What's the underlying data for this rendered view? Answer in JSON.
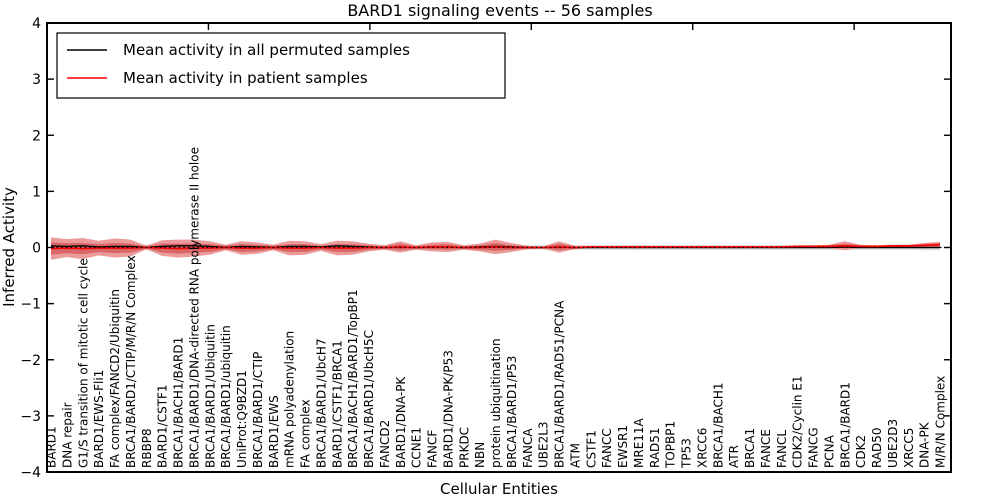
{
  "legend": {
    "items": [
      {
        "label": "Mean activity in all permuted samples",
        "color": "#000000"
      },
      {
        "label": "Mean activity in patient samples",
        "color": "#ff0000"
      }
    ]
  },
  "chart_data": {
    "type": "line",
    "title": "BARD1 signaling events -- 56 samples",
    "xlabel": "Cellular Entities",
    "ylabel": "Inferred Activity",
    "ylim": [
      -4,
      4
    ],
    "ytick_labels": [
      "4",
      "3",
      "2",
      "1",
      "0",
      "−1",
      "−2",
      "−3",
      "−4"
    ],
    "ytick_values": [
      4,
      3,
      2,
      1,
      0,
      -1,
      -2,
      -3,
      -4
    ],
    "grid": false,
    "legend_position": "upper-left",
    "zero_line": {
      "style": "dotted",
      "color": "#000000",
      "value": 0
    },
    "categories": [
      "BARD1",
      "DNA repair",
      "G1/S transition of mitotic cell cycle",
      "BARD1/EWS-Fli1",
      "FA complex/FANCD2/Ubiquitin",
      "BRCA1/BARD1/CTIP/M/R/N Complex",
      "RBBP8",
      "BARD1/CSTF1",
      "BRCA1/BACH1/BARD1",
      "BRCA1/BARD1/DNA-directed RNA polymerase II holoe",
      "BRCA1/BARD1/Ubiquitin",
      "BRCA1/BARD1/ubiquitin",
      "UniProt:Q9BZD1",
      "BRCA1/BARD1/CTIP",
      "BARD1/EWS",
      "mRNA polyadenylation",
      "FA complex",
      "BRCA1/BARD1/UbcH7",
      "BARD1/CSTF1/BRCA1",
      "BRCA1/BACH1/BARD1/TopBP1",
      "BRCA1/BARD1/UbcH5C",
      "FANCD2",
      "BARD1/DNA-PK",
      "CCNE1",
      "FANCF",
      "BARD1/DNA-PK/P53",
      "PRKDC",
      "NBN",
      "protein ubiquitination",
      "BRCA1/BARD1/P53",
      "FANCA",
      "UBE2L3",
      "BRCA1/BARD1/RAD51/PCNA",
      "ATM",
      "CSTF1",
      "FANCC",
      "EWSR1",
      "MRE11A",
      "RAD51",
      "TOPBP1",
      "TP53",
      "XRCC6",
      "BRCA1/BACH1",
      "ATR",
      "BRCA1",
      "FANCE",
      "FANCL",
      "CDK2/Cyclin E1",
      "FANCG",
      "PCNA",
      "BRCA1/BARD1",
      "CDK2",
      "RAD50",
      "UBE2D3",
      "XRCC5",
      "DNA-PK",
      "M/R/N Complex"
    ],
    "series": [
      {
        "name": "Mean activity in all permuted samples",
        "color": "#000000",
        "values": [
          0.03,
          0.02,
          0.03,
          0.01,
          0.02,
          0.02,
          0.0,
          0.02,
          0.03,
          0.03,
          0.02,
          0.0,
          0.02,
          0.01,
          0.0,
          0.02,
          0.02,
          0.01,
          0.03,
          0.02,
          0.01,
          0.0,
          0.01,
          0.0,
          0.01,
          0.01,
          0.0,
          0.01,
          0.02,
          0.01,
          0.0,
          0.0,
          0.01,
          0.0,
          0.0,
          0.0,
          0.0,
          0.0,
          0.0,
          0.0,
          0.0,
          0.0,
          0.0,
          0.0,
          0.0,
          0.0,
          0.0,
          0.0,
          0.0,
          0.0,
          0.01,
          0.0,
          0.0,
          0.0,
          0.0,
          0.0,
          0.0
        ]
      },
      {
        "name": "Mean activity in patient samples",
        "color": "#ff0000",
        "values": [
          -0.02,
          -0.01,
          -0.02,
          -0.01,
          -0.01,
          -0.01,
          0.0,
          -0.01,
          -0.02,
          -0.01,
          -0.01,
          0.0,
          -0.01,
          -0.01,
          0.0,
          -0.01,
          -0.01,
          0.0,
          -0.01,
          -0.01,
          0.0,
          0.0,
          0.01,
          0.0,
          0.01,
          0.01,
          0.0,
          0.0,
          0.01,
          0.0,
          0.0,
          0.0,
          0.01,
          0.0,
          0.01,
          0.01,
          0.01,
          0.01,
          0.01,
          0.01,
          0.01,
          0.01,
          0.01,
          0.01,
          0.01,
          0.01,
          0.01,
          0.02,
          0.02,
          0.02,
          0.03,
          0.02,
          0.02,
          0.03,
          0.03,
          0.04,
          0.05
        ]
      }
    ],
    "bands": [
      {
        "name": "permuted-samples-std-band",
        "color": "#dedede",
        "center_series": 0,
        "half_widths": [
          0.1,
          0.09,
          0.1,
          0.08,
          0.09,
          0.08,
          0.05,
          0.08,
          0.09,
          0.08,
          0.07,
          0.05,
          0.07,
          0.06,
          0.05,
          0.08,
          0.07,
          0.05,
          0.08,
          0.07,
          0.05,
          0.04,
          0.06,
          0.04,
          0.06,
          0.06,
          0.04,
          0.05,
          0.09,
          0.06,
          0.04,
          0.04,
          0.07,
          0.04,
          0.04,
          0.04,
          0.04,
          0.05,
          0.04,
          0.04,
          0.04,
          0.04,
          0.04,
          0.04,
          0.04,
          0.04,
          0.04,
          0.04,
          0.04,
          0.04,
          0.06,
          0.04,
          0.04,
          0.04,
          0.04,
          0.05,
          0.05
        ]
      },
      {
        "name": "patient-samples-std-band-outer",
        "color": "#ec9b9b",
        "center_series": 1,
        "half_widths": [
          0.2,
          0.16,
          0.19,
          0.13,
          0.17,
          0.15,
          0.03,
          0.14,
          0.16,
          0.15,
          0.12,
          0.05,
          0.12,
          0.1,
          0.05,
          0.13,
          0.12,
          0.06,
          0.13,
          0.12,
          0.07,
          0.04,
          0.1,
          0.04,
          0.08,
          0.09,
          0.04,
          0.07,
          0.13,
          0.08,
          0.03,
          0.02,
          0.1,
          0.03,
          0.02,
          0.02,
          0.02,
          0.02,
          0.02,
          0.02,
          0.02,
          0.02,
          0.02,
          0.02,
          0.02,
          0.02,
          0.02,
          0.02,
          0.02,
          0.03,
          0.08,
          0.03,
          0.02,
          0.02,
          0.02,
          0.04,
          0.05
        ]
      },
      {
        "name": "patient-samples-std-band-inner",
        "color": "#d96767",
        "center_series": 1,
        "half_widths": [
          0.11,
          0.09,
          0.1,
          0.07,
          0.09,
          0.08,
          0.02,
          0.08,
          0.09,
          0.08,
          0.07,
          0.03,
          0.07,
          0.06,
          0.03,
          0.07,
          0.07,
          0.03,
          0.07,
          0.07,
          0.04,
          0.02,
          0.06,
          0.02,
          0.04,
          0.05,
          0.02,
          0.04,
          0.07,
          0.04,
          0.02,
          0.01,
          0.06,
          0.02,
          0.01,
          0.01,
          0.01,
          0.01,
          0.01,
          0.01,
          0.01,
          0.01,
          0.01,
          0.01,
          0.01,
          0.01,
          0.01,
          0.01,
          0.01,
          0.02,
          0.04,
          0.02,
          0.01,
          0.01,
          0.01,
          0.02,
          0.03
        ]
      }
    ]
  }
}
